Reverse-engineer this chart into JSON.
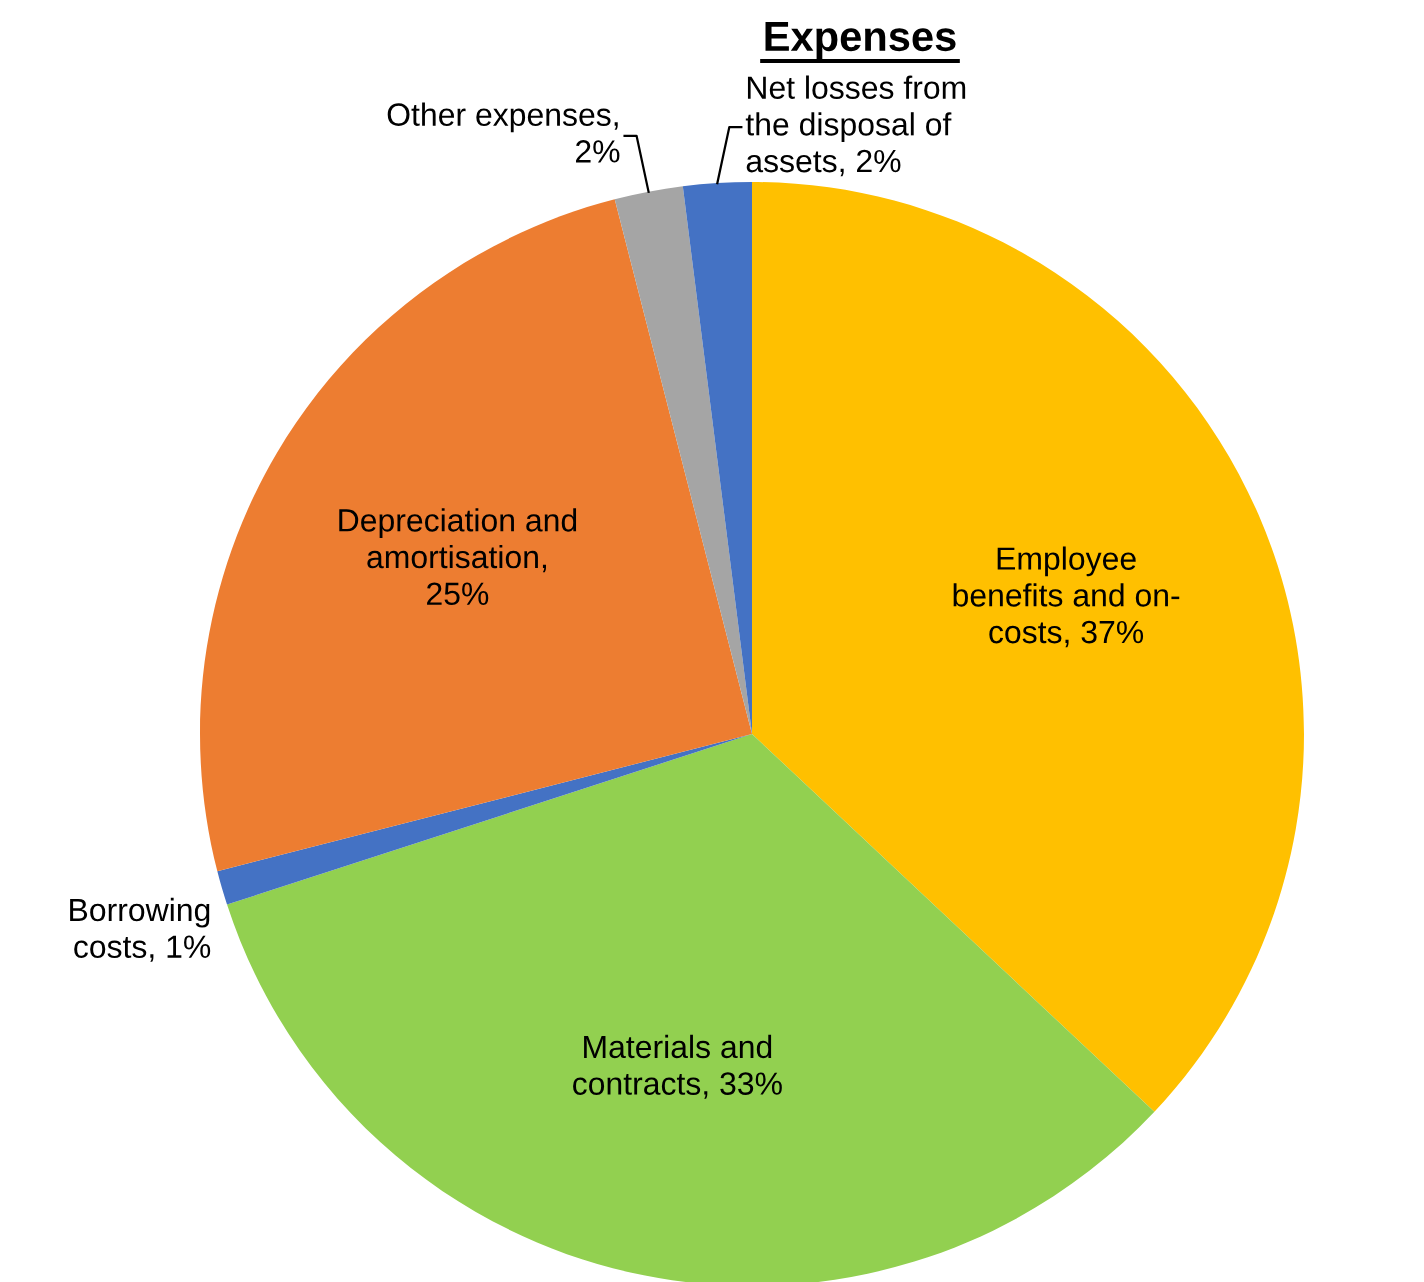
{
  "chart_data": {
    "type": "pie",
    "title": "Expenses",
    "categories": [
      "Employee\nbenefits and on-\ncosts, 37%",
      "Materials and\ncontracts, 33%",
      "Borrowing\ncosts, 1%",
      "Depreciation and\namortisation,\n25%",
      "Other expenses,\n2%",
      "Net losses from\nthe disposal of\nassets, 2%"
    ],
    "values": [
      37,
      33,
      1,
      25,
      2,
      2
    ],
    "colors": [
      "#ffc000",
      "#92d050",
      "#4472c4",
      "#ed7d31",
      "#a5a5a5",
      "#4472c4"
    ],
    "legend": false
  }
}
